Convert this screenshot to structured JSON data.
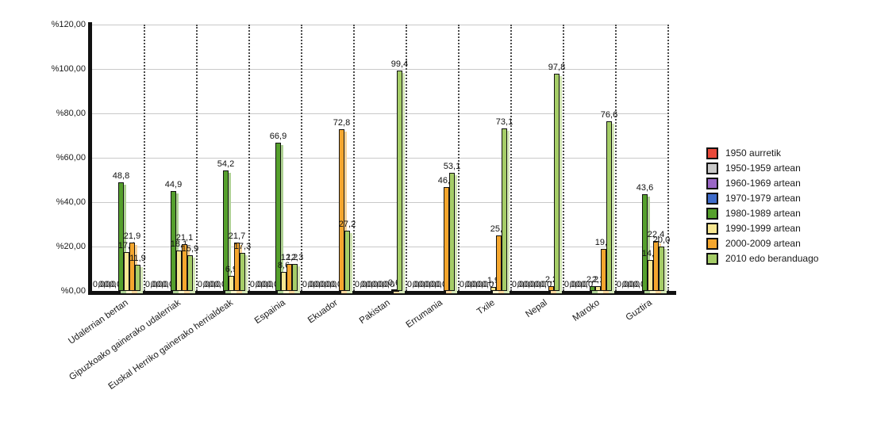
{
  "chart_data": {
    "type": "bar",
    "title": "",
    "xlabel": "",
    "ylabel": "",
    "ylim": [
      0,
      120
    ],
    "grid": true,
    "legend_position": "right",
    "value_label_format": "percent, comma decimal, 1 fraction digit",
    "y_ticks": [
      "%0,00",
      "%20,00",
      "%40,00",
      "%60,00",
      "%80,00",
      "%100,00",
      "%120,00"
    ],
    "y_tick_values": [
      0,
      20,
      40,
      60,
      80,
      100,
      120
    ],
    "categories": [
      "Udalerrian bertan",
      "Gipuzkoako gainerako udalerriak",
      "Euskal Herriko gainerako herrialdeak",
      "Espainia",
      "Ekuador",
      "Pakistan",
      "Errumania",
      "Txile",
      "Nepal",
      "Maroko",
      "Guztira"
    ],
    "series": [
      {
        "name": "1950 aurretik",
        "color": "#e8493a",
        "shadow": "#f3a79d",
        "values": [
          0,
          0,
          0,
          0,
          0,
          0,
          0,
          0,
          0,
          0,
          0
        ]
      },
      {
        "name": "1950-1959 artean",
        "color": "#c9c9c9",
        "shadow": "#e6e6e6",
        "values": [
          0,
          0,
          0,
          0,
          0,
          0,
          0,
          0,
          0,
          0,
          0
        ]
      },
      {
        "name": "1960-1969 artean",
        "color": "#9a67c6",
        "shadow": "#cdb4e3",
        "values": [
          0,
          0,
          0,
          0,
          0,
          0,
          0,
          0,
          0,
          0,
          0
        ]
      },
      {
        "name": "1970-1979 artean",
        "color": "#3f6ccb",
        "shadow": "#a2b7e7",
        "values": [
          0,
          0,
          0,
          0,
          0,
          0,
          0,
          0,
          0,
          0,
          0
        ]
      },
      {
        "name": "1980-1989 artean",
        "color": "#55a02c",
        "shadow": "#aed193",
        "values": [
          48.8,
          44.9,
          54.2,
          66.9,
          0,
          0,
          0,
          0,
          0,
          2.2,
          43.6
        ]
      },
      {
        "name": "1990-1999 artean",
        "color": "#f7e792",
        "shadow": "#fcf4ca",
        "values": [
          17.4,
          18.1,
          6.9,
          8.6,
          0,
          0,
          0,
          1.9,
          0,
          2.1,
          14.0
        ]
      },
      {
        "name": "2000-2009 artean",
        "color": "#f4a62e",
        "shadow": "#f9d49a",
        "values": [
          21.9,
          21.1,
          21.7,
          12.2,
          72.8,
          0.6,
          46.9,
          25.0,
          2.2,
          19.1,
          22.4
        ]
      },
      {
        "name": "2010 edo beranduago",
        "color": "#a5cd67",
        "shadow": "#d4e7b6",
        "values": [
          11.9,
          15.9,
          17.3,
          12.3,
          27.2,
          99.4,
          53.1,
          73.1,
          97.8,
          76.6,
          20.0
        ]
      }
    ]
  }
}
